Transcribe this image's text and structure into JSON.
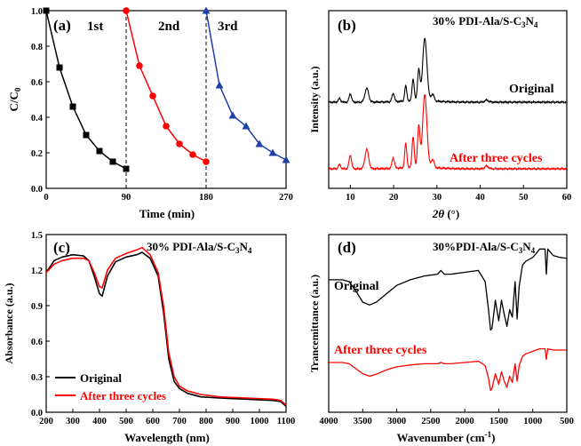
{
  "chart_data": [
    {
      "panel": "(a)",
      "type": "line",
      "xlabel": "Time (min)",
      "ylabel_main": "C/C",
      "ylabel_sub": "0",
      "xlim": [
        0,
        270
      ],
      "ylim": [
        0,
        1.0
      ],
      "xticks": [
        0,
        90,
        180,
        270
      ],
      "yticks": [
        0.0,
        0.2,
        0.4,
        0.6,
        0.8,
        1.0
      ],
      "dividers": [
        90,
        180
      ],
      "series": [
        {
          "name": "1st",
          "color": "#000000",
          "marker": "square",
          "x": [
            0,
            15,
            30,
            45,
            60,
            75,
            90
          ],
          "y": [
            1.0,
            0.68,
            0.46,
            0.3,
            0.21,
            0.15,
            0.11
          ]
        },
        {
          "name": "2nd",
          "color": "#ff0000",
          "marker": "circle",
          "x": [
            90,
            105,
            120,
            135,
            150,
            165,
            180
          ],
          "y": [
            1.0,
            0.69,
            0.52,
            0.35,
            0.25,
            0.19,
            0.15
          ]
        },
        {
          "name": "3rd",
          "color": "#1f3fa8",
          "marker": "triangle",
          "x": [
            180,
            195,
            210,
            225,
            240,
            255,
            270
          ],
          "y": [
            1.0,
            0.58,
            0.41,
            0.35,
            0.25,
            0.2,
            0.16
          ]
        }
      ]
    },
    {
      "panel": "(b)",
      "type": "line",
      "title_main": "30% PDI-Ala/S-C",
      "title_sub1": "3",
      "title_n": "N",
      "title_sub2": "4",
      "xlabel_theta": "2θ",
      "xlabel_unit": " (°)",
      "ylabel": "Intensity (a.u.)",
      "xlim": [
        5,
        60
      ],
      "xticks": [
        10,
        20,
        30,
        40,
        50,
        60
      ],
      "series": [
        {
          "name": "Original",
          "color": "#000000",
          "offset": 1.0,
          "peaks": [
            [
              7.5,
              0.05,
              0.4
            ],
            [
              10,
              0.12,
              0.4
            ],
            [
              13.8,
              0.2,
              0.6
            ],
            [
              19.9,
              0.12,
              0.4
            ],
            [
              22.8,
              0.22,
              0.35
            ],
            [
              24.5,
              0.32,
              0.35
            ],
            [
              25.8,
              0.45,
              0.4
            ],
            [
              27.2,
              0.9,
              0.7
            ],
            [
              29,
              0.1,
              0.5
            ],
            [
              41.5,
              0.03,
              0.6
            ]
          ]
        },
        {
          "name": "After three cycles",
          "color": "#ff0000",
          "offset": 0.0,
          "peaks": [
            [
              7.5,
              0.06,
              0.4
            ],
            [
              10,
              0.2,
              0.4
            ],
            [
              13.8,
              0.28,
              0.6
            ],
            [
              19.9,
              0.15,
              0.4
            ],
            [
              22.8,
              0.35,
              0.35
            ],
            [
              24.5,
              0.45,
              0.35
            ],
            [
              25.8,
              0.6,
              0.4
            ],
            [
              27.2,
              1.05,
              0.7
            ],
            [
              29,
              0.12,
              0.5
            ],
            [
              41.5,
              0.04,
              0.6
            ]
          ]
        }
      ]
    },
    {
      "panel": "(c)",
      "type": "line",
      "title_main": "30% PDI-Ala/S-C",
      "title_sub1": "3",
      "title_n": "N",
      "title_sub2": "4",
      "xlabel": "Wavelength (nm)",
      "ylabel": "Absorbance (a.u.)",
      "xlim": [
        200,
        1100
      ],
      "ylim": [
        0.0,
        1.5
      ],
      "xticks": [
        200,
        300,
        400,
        500,
        600,
        700,
        800,
        900,
        1000,
        1100
      ],
      "yticks": [
        0.0,
        0.3,
        0.6,
        0.9,
        1.2,
        1.5
      ],
      "series": [
        {
          "name": "Original",
          "color": "#000000",
          "x": [
            200,
            230,
            260,
            300,
            340,
            360,
            380,
            400,
            410,
            430,
            460,
            500,
            540,
            560,
            590,
            620,
            640,
            660,
            680,
            700,
            730,
            780,
            850,
            950,
            1050,
            1080,
            1100
          ],
          "y": [
            1.18,
            1.28,
            1.31,
            1.33,
            1.32,
            1.28,
            1.15,
            1.0,
            0.98,
            1.15,
            1.27,
            1.31,
            1.33,
            1.35,
            1.3,
            1.15,
            0.85,
            0.45,
            0.26,
            0.2,
            0.16,
            0.13,
            0.12,
            0.11,
            0.1,
            0.09,
            0.05
          ]
        },
        {
          "name": "After three cycles",
          "color": "#ff0000",
          "x": [
            200,
            230,
            260,
            300,
            340,
            360,
            380,
            400,
            410,
            430,
            460,
            500,
            540,
            560,
            590,
            620,
            640,
            660,
            680,
            700,
            730,
            780,
            850,
            950,
            1050,
            1080,
            1100
          ],
          "y": [
            1.18,
            1.25,
            1.28,
            1.3,
            1.3,
            1.28,
            1.18,
            1.06,
            1.05,
            1.2,
            1.3,
            1.34,
            1.37,
            1.39,
            1.33,
            1.18,
            0.9,
            0.5,
            0.3,
            0.22,
            0.18,
            0.15,
            0.13,
            0.12,
            0.11,
            0.1,
            0.06
          ]
        }
      ]
    },
    {
      "panel": "(d)",
      "type": "line",
      "title_main": "30%PDI-Ala/S-C",
      "title_sub1": "3",
      "title_n": "N",
      "title_sub2": "4",
      "xlabel_main": "Wavenumber (cm",
      "xlabel_sup": "-1",
      "xlabel_end": ")",
      "ylabel": "Trancemittance (a.u.)",
      "xlim": [
        4000,
        500
      ],
      "xticks": [
        4000,
        3500,
        3000,
        2500,
        2000,
        1500,
        1000,
        500
      ],
      "series": [
        {
          "name": "Original",
          "color": "#000000",
          "offset": 1.0,
          "x": [
            4000,
            3800,
            3700,
            3600,
            3500,
            3400,
            3300,
            3200,
            3100,
            3000,
            2800,
            2600,
            2400,
            2350,
            2300,
            2200,
            2000,
            1800,
            1700,
            1650,
            1620,
            1600,
            1550,
            1500,
            1460,
            1420,
            1380,
            1340,
            1300,
            1260,
            1230,
            1200,
            1150,
            1100,
            1050,
            1000,
            950,
            900,
            850,
            820,
            800,
            780,
            700,
            600,
            500
          ],
          "y": [
            0.62,
            0.62,
            0.6,
            0.5,
            0.38,
            0.35,
            0.38,
            0.44,
            0.5,
            0.56,
            0.62,
            0.66,
            0.68,
            0.72,
            0.68,
            0.68,
            0.7,
            0.72,
            0.6,
            0.3,
            0.08,
            0.1,
            0.4,
            0.18,
            0.4,
            0.25,
            0.12,
            0.3,
            0.22,
            0.6,
            0.2,
            0.55,
            0.78,
            0.82,
            0.84,
            0.86,
            0.9,
            0.95,
            0.95,
            0.95,
            0.68,
            0.95,
            0.88,
            0.86,
            0.85
          ]
        },
        {
          "name": "After three cycles",
          "color": "#ff0000",
          "offset": 0.0,
          "x": [
            4000,
            3800,
            3700,
            3600,
            3500,
            3400,
            3300,
            3200,
            3100,
            3000,
            2800,
            2600,
            2400,
            2350,
            2300,
            2200,
            2000,
            1800,
            1700,
            1650,
            1620,
            1600,
            1550,
            1500,
            1460,
            1420,
            1380,
            1340,
            1300,
            1260,
            1230,
            1200,
            1150,
            1100,
            1050,
            1000,
            950,
            900,
            850,
            820,
            800,
            780,
            700,
            600,
            500
          ],
          "y": [
            0.6,
            0.6,
            0.58,
            0.5,
            0.42,
            0.38,
            0.41,
            0.46,
            0.5,
            0.53,
            0.56,
            0.58,
            0.58,
            0.6,
            0.58,
            0.58,
            0.6,
            0.62,
            0.55,
            0.35,
            0.15,
            0.18,
            0.42,
            0.25,
            0.45,
            0.3,
            0.2,
            0.38,
            0.28,
            0.58,
            0.3,
            0.55,
            0.7,
            0.74,
            0.76,
            0.78,
            0.8,
            0.82,
            0.82,
            0.82,
            0.65,
            0.82,
            0.8,
            0.8,
            0.8
          ]
        }
      ]
    }
  ]
}
